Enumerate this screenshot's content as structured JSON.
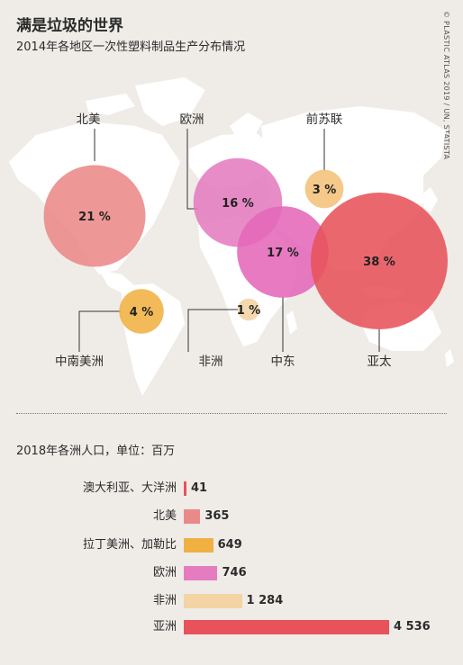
{
  "header": {
    "title": "满是垃圾的世界",
    "subtitle": "2014年各地区一次性塑料制品生产分布情况",
    "credit": "© PLASTIC ATLAS 2019 / UN, STATISTA"
  },
  "colors": {
    "background": "#efece8",
    "land": "#ffffff",
    "leader": "#333333",
    "north_america": "#ea8a88",
    "latin_america": "#f0b042",
    "europe": "#e57cc0",
    "africa": "#f3d4a4",
    "middle_east": "#e468b8",
    "asia_pacific": "#e8525a",
    "former_ussr": "#f4c17a"
  },
  "chart_data": [
    {
      "type": "bubble",
      "title": "2014年各地区一次性塑料制品生产分布情况",
      "unit": "%",
      "regions": [
        {
          "name": "北美",
          "value": 21,
          "label": "21 %",
          "color": "#ea8a88"
        },
        {
          "name": "中南美洲",
          "value": 4,
          "label": "4 %",
          "color": "#f0b042"
        },
        {
          "name": "欧洲",
          "value": 16,
          "label": "16 %",
          "color": "#e57cc0"
        },
        {
          "name": "非洲",
          "value": 1,
          "label": "1 %",
          "color": "#f3d4a4"
        },
        {
          "name": "中东",
          "value": 17,
          "label": "17 %",
          "color": "#e468b8"
        },
        {
          "name": "亚太",
          "value": 38,
          "label": "38 %",
          "color": "#e8525a"
        },
        {
          "name": "前苏联",
          "value": 3,
          "label": "3 %",
          "color": "#f4c17a"
        }
      ]
    },
    {
      "type": "bar",
      "title": "2018年各洲人口，单位：百万",
      "categories": [
        "澳大利亚、大洋洲",
        "北美",
        "拉丁美洲、加勒比",
        "欧洲",
        "非洲",
        "亚洲"
      ],
      "values": [
        41,
        365,
        649,
        746,
        1284,
        4536
      ],
      "value_labels": [
        "41",
        "365",
        "649",
        "746",
        "1 284",
        "4 536"
      ],
      "colors": [
        "#e8525a",
        "#ea8a88",
        "#f0b042",
        "#e57cc0",
        "#f3d4a4",
        "#e8525a"
      ]
    }
  ]
}
